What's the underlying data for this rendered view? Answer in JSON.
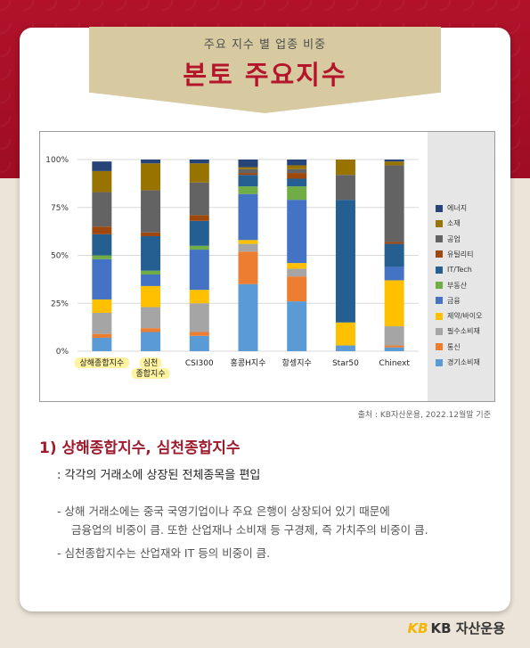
{
  "banner": {
    "subtitle": "주요 지수 별 업종 비중",
    "title": "본토 주요지수"
  },
  "source": "출처 : KB자산운용, 2022.12월말 기준",
  "section": {
    "title": "1) 상해종합지수, 심천종합지수",
    "subtitle": ": 각각의 거래소에 상장된 전체종목을 편입",
    "bullets": [
      "- 상해 거래소에는 중국 국영기업이나 주요 은행이 상장되어 있기 때문에",
      "금융업의 비중이 큼. 또한 산업재나 소비재 등 구경제, 즉 가치주의 비중이 큼.",
      "- 심천종합지수는 산업재와 IT 등의 비중이 큼."
    ]
  },
  "logo": {
    "mark": "KB",
    "text": "KB 자산운용"
  },
  "chart_data": {
    "type": "bar",
    "stacked": true,
    "categories": [
      "상해종합지수",
      "심천\n종합지수",
      "CSI300",
      "홍콩H지수",
      "항셍지수",
      "Star50",
      "Chinext"
    ],
    "highlighted_categories": [
      0,
      1
    ],
    "highlight_color": "#fff3a0",
    "y_ticks": [
      "0%",
      "25%",
      "50%",
      "75%",
      "100%"
    ],
    "ylim": [
      0,
      100
    ],
    "grid": true,
    "legend_position": "right",
    "series": [
      {
        "name": "경기소비재",
        "color": "#5b9bd5",
        "values": [
          7,
          10,
          8,
          35,
          26,
          3,
          2
        ]
      },
      {
        "name": "통신",
        "color": "#ed7d31",
        "values": [
          2,
          2,
          2,
          17,
          13,
          0,
          1
        ]
      },
      {
        "name": "필수소비재",
        "color": "#a5a5a5",
        "values": [
          11,
          11,
          15,
          4,
          4,
          0,
          10
        ]
      },
      {
        "name": "제약/바이오",
        "color": "#ffc000",
        "values": [
          7,
          11,
          7,
          2,
          3,
          12,
          24
        ]
      },
      {
        "name": "금융",
        "color": "#4472c4",
        "values": [
          21,
          6,
          21,
          24,
          33,
          0,
          7
        ]
      },
      {
        "name": "부동산",
        "color": "#70ad47",
        "values": [
          2,
          2,
          2,
          4,
          7,
          0,
          0
        ]
      },
      {
        "name": "IT/Tech",
        "color": "#255e91",
        "values": [
          11,
          18,
          13,
          6,
          4,
          64,
          12
        ]
      },
      {
        "name": "유틸리티",
        "color": "#9e480e",
        "values": [
          4,
          2,
          3,
          1,
          3,
          0,
          1
        ]
      },
      {
        "name": "공업",
        "color": "#636363",
        "values": [
          18,
          22,
          17,
          2,
          2,
          13,
          40
        ]
      },
      {
        "name": "소재",
        "color": "#997300",
        "values": [
          11,
          14,
          10,
          1,
          2,
          8,
          2
        ]
      },
      {
        "name": "에너지",
        "color": "#264478",
        "values": [
          5,
          2,
          2,
          4,
          3,
          0,
          1
        ]
      }
    ]
  }
}
